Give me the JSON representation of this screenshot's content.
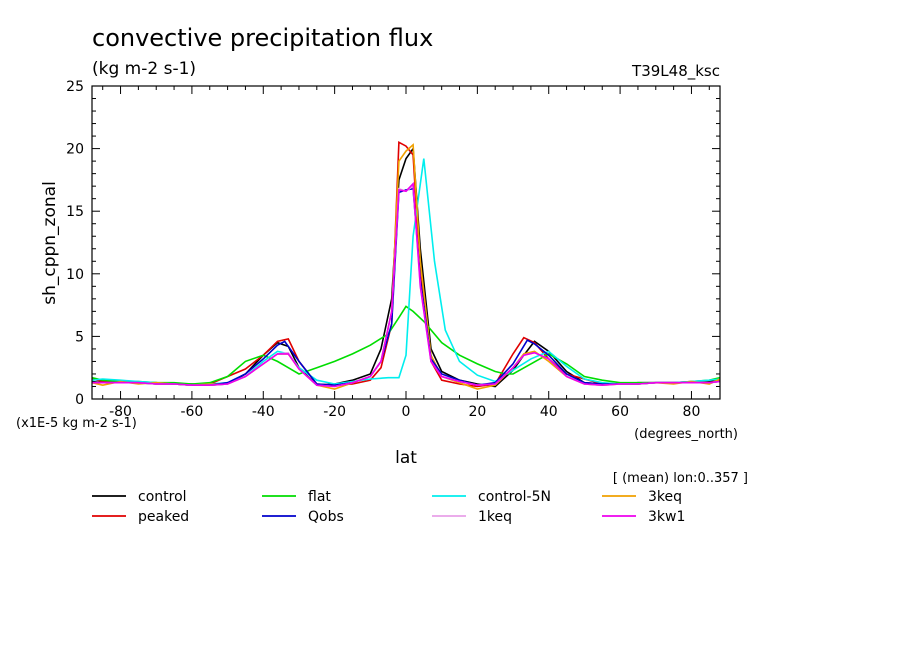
{
  "chart_data": {
    "type": "line",
    "title": "convective precipitation flux",
    "subtitle": "(kg m-2 s-1)",
    "tag_right": "T39L48_ksc",
    "ylabel": "sh_cppn_zonal",
    "xlabel": "lat",
    "x_units": "(degrees_north)",
    "y_scale_note": "(x1E-5 kg m-2 s-1)",
    "mean_note": "[ (mean) lon:0..357 ]",
    "xlim": [
      -88,
      88
    ],
    "ylim": [
      0,
      25
    ],
    "x_ticks": [
      -80,
      -60,
      -40,
      -20,
      0,
      20,
      40,
      60,
      80
    ],
    "x_tick_labels": [
      "-80",
      "-60",
      "-40",
      "-20",
      "0",
      "20",
      "40",
      "60",
      "80"
    ],
    "y_ticks": [
      0,
      5,
      10,
      15,
      20,
      25
    ],
    "y_tick_labels": [
      "0",
      "5",
      "10",
      "15",
      "20",
      "25"
    ],
    "legend_position": "bottom",
    "series": [
      {
        "name": "control",
        "color": "#000000",
        "x": [
          -88,
          -85,
          -80,
          -75,
          -70,
          -65,
          -60,
          -55,
          -50,
          -45,
          -40,
          -36,
          -33,
          -30,
          -25,
          -20,
          -15,
          -10,
          -7,
          -4,
          -2,
          0,
          2,
          4,
          7,
          10,
          15,
          20,
          25,
          30,
          33,
          36,
          40,
          45,
          50,
          55,
          60,
          65,
          70,
          75,
          80,
          85,
          88
        ],
        "y": [
          1.4,
          1.3,
          1.4,
          1.3,
          1.3,
          1.2,
          1.2,
          1.1,
          1.2,
          2.0,
          3.5,
          4.5,
          4.2,
          2.5,
          1.1,
          1.2,
          1.5,
          2.0,
          4.0,
          8.0,
          17.5,
          19.2,
          20.0,
          12.0,
          4.0,
          2.2,
          1.5,
          1.2,
          1.0,
          2.3,
          3.5,
          4.6,
          3.8,
          2.2,
          1.3,
          1.2,
          1.2,
          1.3,
          1.3,
          1.3,
          1.3,
          1.4,
          1.5
        ]
      },
      {
        "name": "peaked",
        "color": "#e00000",
        "x": [
          -88,
          -85,
          -80,
          -75,
          -70,
          -65,
          -60,
          -55,
          -50,
          -45,
          -40,
          -36,
          -33,
          -30,
          -25,
          -20,
          -15,
          -10,
          -7,
          -4,
          -2,
          0,
          2,
          4,
          7,
          10,
          15,
          20,
          25,
          30,
          33,
          36,
          40,
          45,
          50,
          55,
          60,
          65,
          70,
          75,
          80,
          85,
          88
        ],
        "y": [
          1.6,
          1.4,
          1.4,
          1.3,
          1.2,
          1.2,
          1.1,
          1.2,
          1.8,
          2.4,
          3.5,
          4.6,
          4.8,
          3.0,
          1.2,
          1.1,
          1.2,
          1.5,
          2.5,
          6.0,
          20.5,
          20.2,
          19.5,
          10.0,
          3.0,
          1.5,
          1.2,
          1.0,
          1.2,
          3.6,
          4.9,
          4.5,
          3.2,
          2.0,
          1.6,
          1.2,
          1.2,
          1.2,
          1.3,
          1.3,
          1.4,
          1.3,
          1.5
        ]
      },
      {
        "name": "flat",
        "color": "#00dd00",
        "x": [
          -88,
          -85,
          -80,
          -75,
          -70,
          -65,
          -60,
          -55,
          -50,
          -45,
          -40,
          -36,
          -33,
          -30,
          -25,
          -20,
          -15,
          -10,
          -5,
          -2,
          0,
          2,
          5,
          10,
          15,
          20,
          25,
          28,
          30,
          35,
          40,
          45,
          50,
          55,
          60,
          65,
          70,
          75,
          80,
          85,
          88
        ],
        "y": [
          1.7,
          1.5,
          1.4,
          1.4,
          1.3,
          1.3,
          1.2,
          1.3,
          1.8,
          3.0,
          3.5,
          3.0,
          2.5,
          2.0,
          2.5,
          3.0,
          3.6,
          4.3,
          5.2,
          6.5,
          7.4,
          7.0,
          6.2,
          4.5,
          3.5,
          2.8,
          2.2,
          2.0,
          2.0,
          2.8,
          3.6,
          2.8,
          1.8,
          1.5,
          1.3,
          1.3,
          1.3,
          1.3,
          1.4,
          1.5,
          1.7
        ]
      },
      {
        "name": "control-5N",
        "color": "#00eeee",
        "x": [
          -88,
          -85,
          -80,
          -75,
          -70,
          -65,
          -60,
          -55,
          -50,
          -45,
          -40,
          -36,
          -33,
          -30,
          -25,
          -20,
          -15,
          -10,
          -5,
          -2,
          0,
          2,
          5,
          8,
          11,
          15,
          20,
          25,
          30,
          35,
          40,
          45,
          50,
          55,
          60,
          65,
          70,
          75,
          80,
          85,
          88
        ],
        "y": [
          1.5,
          1.6,
          1.5,
          1.4,
          1.3,
          1.2,
          1.1,
          1.2,
          1.3,
          1.8,
          3.0,
          3.8,
          3.6,
          2.5,
          1.5,
          1.2,
          1.4,
          1.6,
          1.7,
          1.7,
          3.5,
          13.0,
          19.2,
          11.0,
          5.5,
          3.0,
          1.9,
          1.4,
          2.3,
          3.2,
          3.8,
          2.6,
          1.6,
          1.3,
          1.2,
          1.2,
          1.3,
          1.3,
          1.4,
          1.5,
          1.6
        ]
      },
      {
        "name": "3keq",
        "color": "#f0a000",
        "x": [
          -88,
          -85,
          -80,
          -75,
          -70,
          -65,
          -60,
          -55,
          -50,
          -45,
          -40,
          -36,
          -33,
          -30,
          -25,
          -20,
          -15,
          -10,
          -7,
          -4,
          -2,
          0,
          2,
          4,
          7,
          10,
          15,
          20,
          25,
          30,
          33,
          36,
          40,
          45,
          50,
          55,
          60,
          65,
          70,
          75,
          80,
          85,
          88
        ],
        "y": [
          1.3,
          1.1,
          1.4,
          1.2,
          1.3,
          1.2,
          1.1,
          1.2,
          1.2,
          1.8,
          2.8,
          3.6,
          3.6,
          2.4,
          1.1,
          0.8,
          1.3,
          1.8,
          3.0,
          7.0,
          19.0,
          19.8,
          20.3,
          11.0,
          3.5,
          1.8,
          1.3,
          0.8,
          1.1,
          2.5,
          3.6,
          3.8,
          3.0,
          1.8,
          1.2,
          1.1,
          1.2,
          1.2,
          1.3,
          1.2,
          1.4,
          1.2,
          1.6
        ]
      },
      {
        "name": "Qobs",
        "color": "#0000cc",
        "x": [
          -88,
          -85,
          -80,
          -75,
          -70,
          -65,
          -60,
          -55,
          -50,
          -45,
          -40,
          -36,
          -34,
          -30,
          -25,
          -20,
          -15,
          -10,
          -7,
          -4,
          -2,
          0,
          2,
          4,
          7,
          10,
          15,
          20,
          25,
          30,
          34,
          36,
          40,
          45,
          50,
          55,
          60,
          65,
          70,
          75,
          80,
          85,
          88
        ],
        "y": [
          1.3,
          1.3,
          1.3,
          1.3,
          1.2,
          1.2,
          1.1,
          1.1,
          1.3,
          2.0,
          3.2,
          4.3,
          4.6,
          3.0,
          1.2,
          1.1,
          1.3,
          1.8,
          3.0,
          6.0,
          16.5,
          16.7,
          16.8,
          9.5,
          3.2,
          2.0,
          1.5,
          1.1,
          1.3,
          2.8,
          4.7,
          4.4,
          3.5,
          2.0,
          1.3,
          1.2,
          1.2,
          1.2,
          1.3,
          1.3,
          1.3,
          1.3,
          1.4
        ]
      },
      {
        "name": "1keq",
        "color": "#e8a0e8",
        "x": [
          -88,
          -85,
          -80,
          -75,
          -70,
          -65,
          -60,
          -55,
          -50,
          -45,
          -40,
          -36,
          -33,
          -30,
          -25,
          -20,
          -15,
          -10,
          -7,
          -4,
          -2,
          0,
          2,
          4,
          7,
          10,
          15,
          20,
          25,
          30,
          33,
          36,
          40,
          45,
          50,
          55,
          60,
          65,
          70,
          75,
          80,
          85,
          88
        ],
        "y": [
          1.3,
          1.3,
          1.3,
          1.3,
          1.2,
          1.2,
          1.1,
          1.1,
          1.2,
          1.8,
          2.8,
          3.6,
          3.7,
          2.4,
          1.1,
          1.0,
          1.3,
          1.8,
          3.0,
          7.0,
          16.8,
          16.6,
          17.0,
          9.0,
          3.0,
          1.8,
          1.4,
          1.1,
          1.2,
          2.5,
          3.5,
          3.7,
          3.2,
          1.8,
          1.2,
          1.1,
          1.2,
          1.2,
          1.3,
          1.3,
          1.3,
          1.3,
          1.4
        ]
      },
      {
        "name": "3kw1",
        "color": "#ee00ee",
        "x": [
          -88,
          -85,
          -80,
          -75,
          -70,
          -65,
          -60,
          -55,
          -50,
          -45,
          -40,
          -36,
          -33,
          -30,
          -25,
          -20,
          -15,
          -10,
          -7,
          -4,
          -2,
          0,
          2,
          4,
          7,
          10,
          15,
          20,
          25,
          30,
          33,
          36,
          40,
          45,
          50,
          55,
          60,
          65,
          70,
          75,
          80,
          85,
          88
        ],
        "y": [
          1.3,
          1.3,
          1.3,
          1.3,
          1.2,
          1.2,
          1.1,
          1.1,
          1.2,
          1.8,
          2.8,
          3.6,
          3.6,
          2.4,
          1.1,
          1.0,
          1.3,
          1.8,
          3.0,
          7.0,
          16.7,
          16.6,
          17.2,
          9.0,
          3.0,
          1.8,
          1.4,
          1.1,
          1.2,
          2.5,
          3.5,
          3.7,
          3.2,
          1.8,
          1.2,
          1.1,
          1.2,
          1.2,
          1.3,
          1.3,
          1.3,
          1.3,
          1.4
        ]
      }
    ],
    "legend": [
      {
        "name": "control",
        "color": "#000000"
      },
      {
        "name": "flat",
        "color": "#00dd00"
      },
      {
        "name": "control-5N",
        "color": "#00eeee"
      },
      {
        "name": "3keq",
        "color": "#f0a000"
      },
      {
        "name": "peaked",
        "color": "#e00000"
      },
      {
        "name": "Qobs",
        "color": "#0000cc"
      },
      {
        "name": "1keq",
        "color": "#e8a0e8"
      },
      {
        "name": "3kw1",
        "color": "#ee00ee"
      }
    ]
  }
}
